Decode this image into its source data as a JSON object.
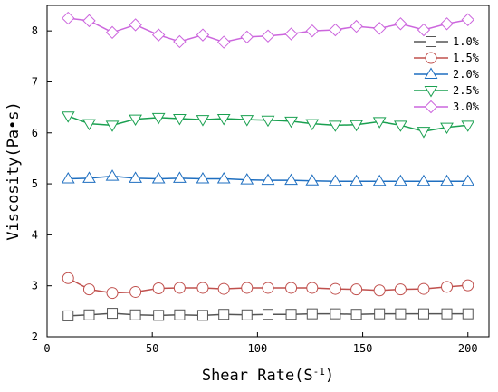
{
  "chart_data": {
    "type": "line",
    "xlabel": "Shear Rate(S",
    "xlabel_sup": "-1",
    "xlabel_close": ")",
    "ylabel": "Viscosity(Pa•s)",
    "xlim": [
      0,
      210
    ],
    "ylim": [
      2,
      8.5
    ],
    "xticks": [
      0,
      50,
      100,
      150,
      200
    ],
    "yticks": [
      2,
      3,
      4,
      5,
      6,
      7,
      8
    ],
    "x": [
      10,
      20,
      31,
      42,
      53,
      63,
      74,
      84,
      95,
      105,
      116,
      126,
      137,
      147,
      158,
      168,
      179,
      190,
      200
    ],
    "legend_position": "top-right",
    "series": [
      {
        "name": "1.0%",
        "color": "#555555",
        "marker": "square",
        "values": [
          2.41,
          2.43,
          2.46,
          2.43,
          2.42,
          2.43,
          2.42,
          2.44,
          2.43,
          2.44,
          2.44,
          2.45,
          2.45,
          2.44,
          2.45,
          2.45,
          2.45,
          2.45,
          2.45
        ]
      },
      {
        "name": "1.5%",
        "color": "#c0504d",
        "marker": "circle",
        "values": [
          3.15,
          2.93,
          2.86,
          2.88,
          2.95,
          2.96,
          2.96,
          2.94,
          2.96,
          2.96,
          2.96,
          2.96,
          2.94,
          2.93,
          2.91,
          2.93,
          2.94,
          2.98,
          3.01
        ]
      },
      {
        "name": "2.0%",
        "color": "#1f6fc0",
        "marker": "triangle-up",
        "values": [
          5.1,
          5.11,
          5.15,
          5.11,
          5.1,
          5.11,
          5.1,
          5.1,
          5.08,
          5.07,
          5.07,
          5.06,
          5.05,
          5.05,
          5.05,
          5.05,
          5.05,
          5.05,
          5.05
        ]
      },
      {
        "name": "2.5%",
        "color": "#1aa050",
        "marker": "triangle-down",
        "values": [
          6.33,
          6.18,
          6.15,
          6.27,
          6.3,
          6.28,
          6.26,
          6.28,
          6.26,
          6.25,
          6.23,
          6.18,
          6.15,
          6.16,
          6.22,
          6.15,
          6.03,
          6.11,
          6.15
        ]
      },
      {
        "name": "3.0%",
        "color": "#cc66dd",
        "marker": "diamond",
        "values": [
          8.25,
          8.2,
          7.97,
          8.12,
          7.92,
          7.79,
          7.92,
          7.78,
          7.88,
          7.9,
          7.94,
          8.0,
          8.02,
          8.09,
          8.05,
          8.14,
          8.02,
          8.14,
          8.22
        ]
      }
    ]
  }
}
